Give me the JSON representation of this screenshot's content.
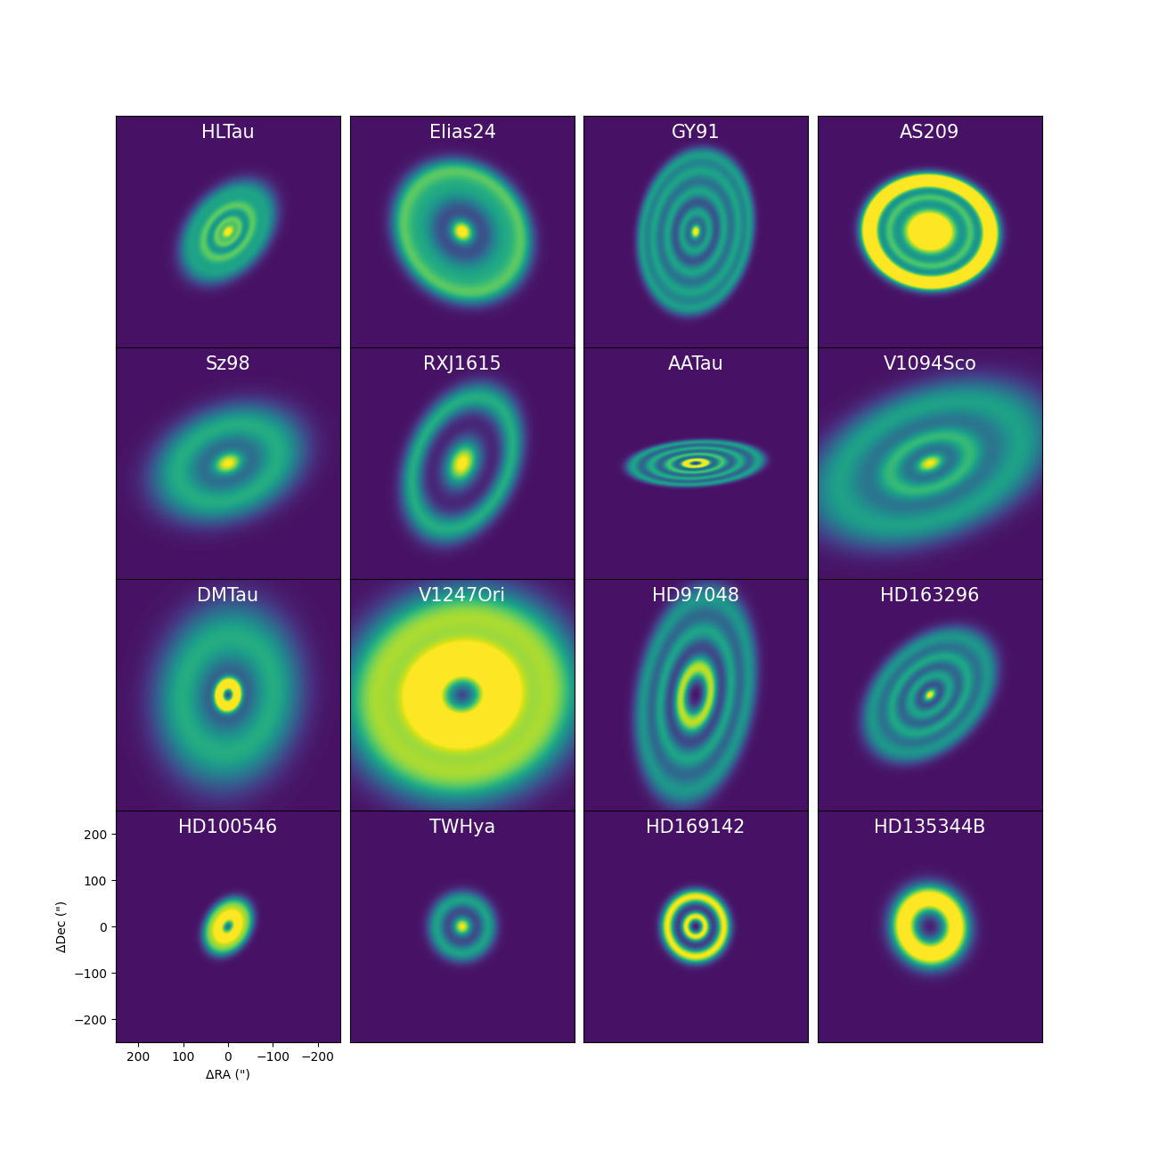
{
  "chart_data": [
    {
      "type": "image",
      "title": "HLTau",
      "inclination": 47,
      "position_angle": 138,
      "components": [
        {
          "radius": 0,
          "width": 15,
          "intensity": 1.1
        },
        {
          "radius": 32,
          "width": 9,
          "intensity": 0.6
        },
        {
          "radius": 62,
          "width": 13,
          "intensity": 0.6
        },
        {
          "radius": 100,
          "width": 22,
          "intensity": 0.55
        }
      ],
      "xlim": [
        250,
        -250
      ],
      "ylim": [
        -250,
        250
      ],
      "color_range": [
        -0.05,
        1
      ],
      "color": "viridis",
      "tick_labels": false
    },
    {
      "type": "image",
      "title": "Elias24",
      "inclination": 29,
      "position_angle": 45,
      "components": [
        {
          "radius": 0,
          "width": 20,
          "intensity": 1.1
        },
        {
          "radius": 100,
          "width": 32,
          "intensity": 0.55
        },
        {
          "radius": 145,
          "width": 18,
          "intensity": 0.5
        }
      ],
      "xlim": [
        250,
        -250
      ],
      "ylim": [
        -250,
        250
      ],
      "color_range": [
        -0.05,
        1
      ],
      "color": "viridis",
      "tick_labels": false
    },
    {
      "type": "image",
      "title": "GY91",
      "inclination": 45,
      "position_angle": 170,
      "components": [
        {
          "radius": 0,
          "width": 12,
          "intensity": 1.1
        },
        {
          "radius": 42,
          "width": 12,
          "intensity": 0.55
        },
        {
          "radius": 88,
          "width": 14,
          "intensity": 0.55
        },
        {
          "radius": 132,
          "width": 15,
          "intensity": 0.55
        },
        {
          "radius": 168,
          "width": 12,
          "intensity": 0.5
        }
      ],
      "xlim": [
        250,
        -250
      ],
      "ylim": [
        -250,
        250
      ],
      "color_range": [
        -0.05,
        1
      ],
      "color": "viridis",
      "tick_labels": false
    },
    {
      "type": "image",
      "title": "AS209",
      "inclination": 35,
      "position_angle": 86,
      "components": [
        {
          "radius": 0,
          "width": 40,
          "intensity": 2.0
        },
        {
          "radius": 92,
          "width": 11,
          "intensity": 0.55
        },
        {
          "radius": 135,
          "width": 14,
          "intensity": 1.6
        }
      ],
      "xlim": [
        250,
        -250
      ],
      "ylim": [
        -250,
        250
      ],
      "color_range": [
        -0.05,
        1
      ],
      "color": "viridis",
      "tick_labels": false
    },
    {
      "type": "image",
      "title": "Sz98",
      "inclination": 47,
      "position_angle": 110,
      "components": [
        {
          "radius": 0,
          "width": 25,
          "intensity": 1.0
        },
        {
          "radius": 115,
          "width": 45,
          "intensity": 0.6
        }
      ],
      "xlim": [
        250,
        -250
      ],
      "ylim": [
        -250,
        250
      ],
      "color_range": [
        -0.05,
        1
      ],
      "color": "viridis",
      "tick_labels": false
    },
    {
      "type": "image",
      "title": "RXJ1615",
      "inclination": 47,
      "position_angle": 155,
      "components": [
        {
          "radius": 0,
          "width": 35,
          "intensity": 1.05
        },
        {
          "radius": 150,
          "width": 24,
          "intensity": 0.6
        }
      ],
      "xlim": [
        250,
        -250
      ],
      "ylim": [
        -250,
        250
      ],
      "color_range": [
        -0.05,
        1
      ],
      "color": "viridis",
      "tick_labels": false
    },
    {
      "type": "image",
      "title": "AATau",
      "inclination": 71,
      "position_angle": 93,
      "components": [
        {
          "radius": 22,
          "width": 9,
          "intensity": 1.2
        },
        {
          "radius": 60,
          "width": 11,
          "intensity": 0.7
        },
        {
          "radius": 100,
          "width": 12,
          "intensity": 0.6
        },
        {
          "radius": 140,
          "width": 12,
          "intensity": 0.55
        }
      ],
      "xlim": [
        250,
        -250
      ],
      "ylim": [
        -250,
        250
      ],
      "color_range": [
        -0.05,
        1
      ],
      "color": "viridis",
      "tick_labels": false
    },
    {
      "type": "image",
      "title": "V1094Sco",
      "inclination": 55,
      "position_angle": 110,
      "components": [
        {
          "radius": 0,
          "width": 25,
          "intensity": 1.0
        },
        {
          "radius": 90,
          "width": 28,
          "intensity": 0.6
        },
        {
          "radius": 210,
          "width": 55,
          "intensity": 0.55
        }
      ],
      "xlim": [
        250,
        -250
      ],
      "ylim": [
        -250,
        250
      ],
      "color_range": [
        -0.05,
        1
      ],
      "color": "viridis",
      "tick_labels": false
    },
    {
      "type": "image",
      "title": "DMTau",
      "inclination": 36,
      "position_angle": 170,
      "components": [
        {
          "radius": 24,
          "width": 11,
          "intensity": 1.2
        },
        {
          "radius": 125,
          "width": 55,
          "intensity": 0.6
        }
      ],
      "xlim": [
        250,
        -250
      ],
      "ylim": [
        -250,
        250
      ],
      "color_range": [
        -0.05,
        1
      ],
      "color": "viridis",
      "tick_labels": false
    },
    {
      "type": "image",
      "title": "V1247Ori",
      "inclination": 30,
      "position_angle": 100,
      "components": [
        {
          "radius": 80,
          "width": 38,
          "intensity": 1.4
        },
        {
          "radius": 195,
          "width": 55,
          "intensity": 0.85
        }
      ],
      "xlim": [
        250,
        -250
      ],
      "ylim": [
        -250,
        250
      ],
      "color_range": [
        -0.05,
        1
      ],
      "color": "viridis",
      "tick_labels": false
    },
    {
      "type": "image",
      "title": "HD97048",
      "inclination": 57,
      "position_angle": 170,
      "components": [
        {
          "radius": 60,
          "width": 20,
          "intensity": 0.9
        },
        {
          "radius": 140,
          "width": 20,
          "intensity": 0.55
        },
        {
          "radius": 210,
          "width": 25,
          "intensity": 0.5
        }
      ],
      "xlim": [
        250,
        -250
      ],
      "ylim": [
        -250,
        250
      ],
      "color_range": [
        -0.05,
        1
      ],
      "color": "viridis",
      "tick_labels": false
    },
    {
      "type": "image",
      "title": "HD163296",
      "inclination": 47,
      "position_angle": 133,
      "components": [
        {
          "radius": 0,
          "width": 12,
          "intensity": 1.05
        },
        {
          "radius": 50,
          "width": 14,
          "intensity": 0.55
        },
        {
          "radius": 97,
          "width": 15,
          "intensity": 0.55
        },
        {
          "radius": 148,
          "width": 20,
          "intensity": 0.5
        }
      ],
      "xlim": [
        250,
        -250
      ],
      "ylim": [
        -250,
        250
      ],
      "color_range": [
        -0.05,
        1
      ],
      "color": "viridis",
      "tick_labels": false
    },
    {
      "type": "image",
      "title": "HD100546",
      "inclination": 42,
      "position_angle": 146,
      "components": [
        {
          "radius": 25,
          "width": 15,
          "intensity": 1.1
        },
        {
          "radius": 55,
          "width": 12,
          "intensity": 0.6
        }
      ],
      "xlim": [
        250,
        -250
      ],
      "ylim": [
        -250,
        250
      ],
      "color_range": [
        -0.05,
        1
      ],
      "color": "viridis",
      "xticks": [
        200,
        100,
        0,
        {
          "value": -100,
          "label": "−100"
        },
        {
          "value": -200,
          "label": "−200"
        }
      ],
      "yticks": [
        {
          "value": -200,
          "label": "−200"
        },
        {
          "value": -100,
          "label": "−100"
        },
        0,
        100,
        200
      ],
      "xlabel": "ΔRA (\")",
      "ylabel": "ΔDec (\")"
    },
    {
      "type": "image",
      "title": "TWHya",
      "inclination": 7,
      "position_angle": 150,
      "components": [
        {
          "radius": 0,
          "width": 15,
          "intensity": 1.0
        },
        {
          "radius": 58,
          "width": 14,
          "intensity": 0.55
        }
      ],
      "xlim": [
        250,
        -250
      ],
      "ylim": [
        -250,
        250
      ],
      "color_range": [
        -0.05,
        1
      ],
      "color": "viridis",
      "tick_labels": false
    },
    {
      "type": "image",
      "title": "HD169142",
      "inclination": 13,
      "position_angle": 5,
      "components": [
        {
          "radius": 22,
          "width": 8,
          "intensity": 1.0
        },
        {
          "radius": 65,
          "width": 11,
          "intensity": 1.0
        }
      ],
      "xlim": [
        250,
        -250
      ],
      "ylim": [
        -250,
        250
      ],
      "color_range": [
        -0.05,
        1
      ],
      "color": "viridis",
      "tick_labels": false
    },
    {
      "type": "image",
      "title": "HD135344B",
      "inclination": 16,
      "position_angle": 28,
      "components": [
        {
          "radius": 60,
          "width": 22,
          "intensity": 1.2
        }
      ],
      "xlim": [
        250,
        -250
      ],
      "ylim": [
        -250,
        250
      ],
      "color_range": [
        -0.05,
        1
      ],
      "color": "viridis",
      "tick_labels": false
    }
  ]
}
